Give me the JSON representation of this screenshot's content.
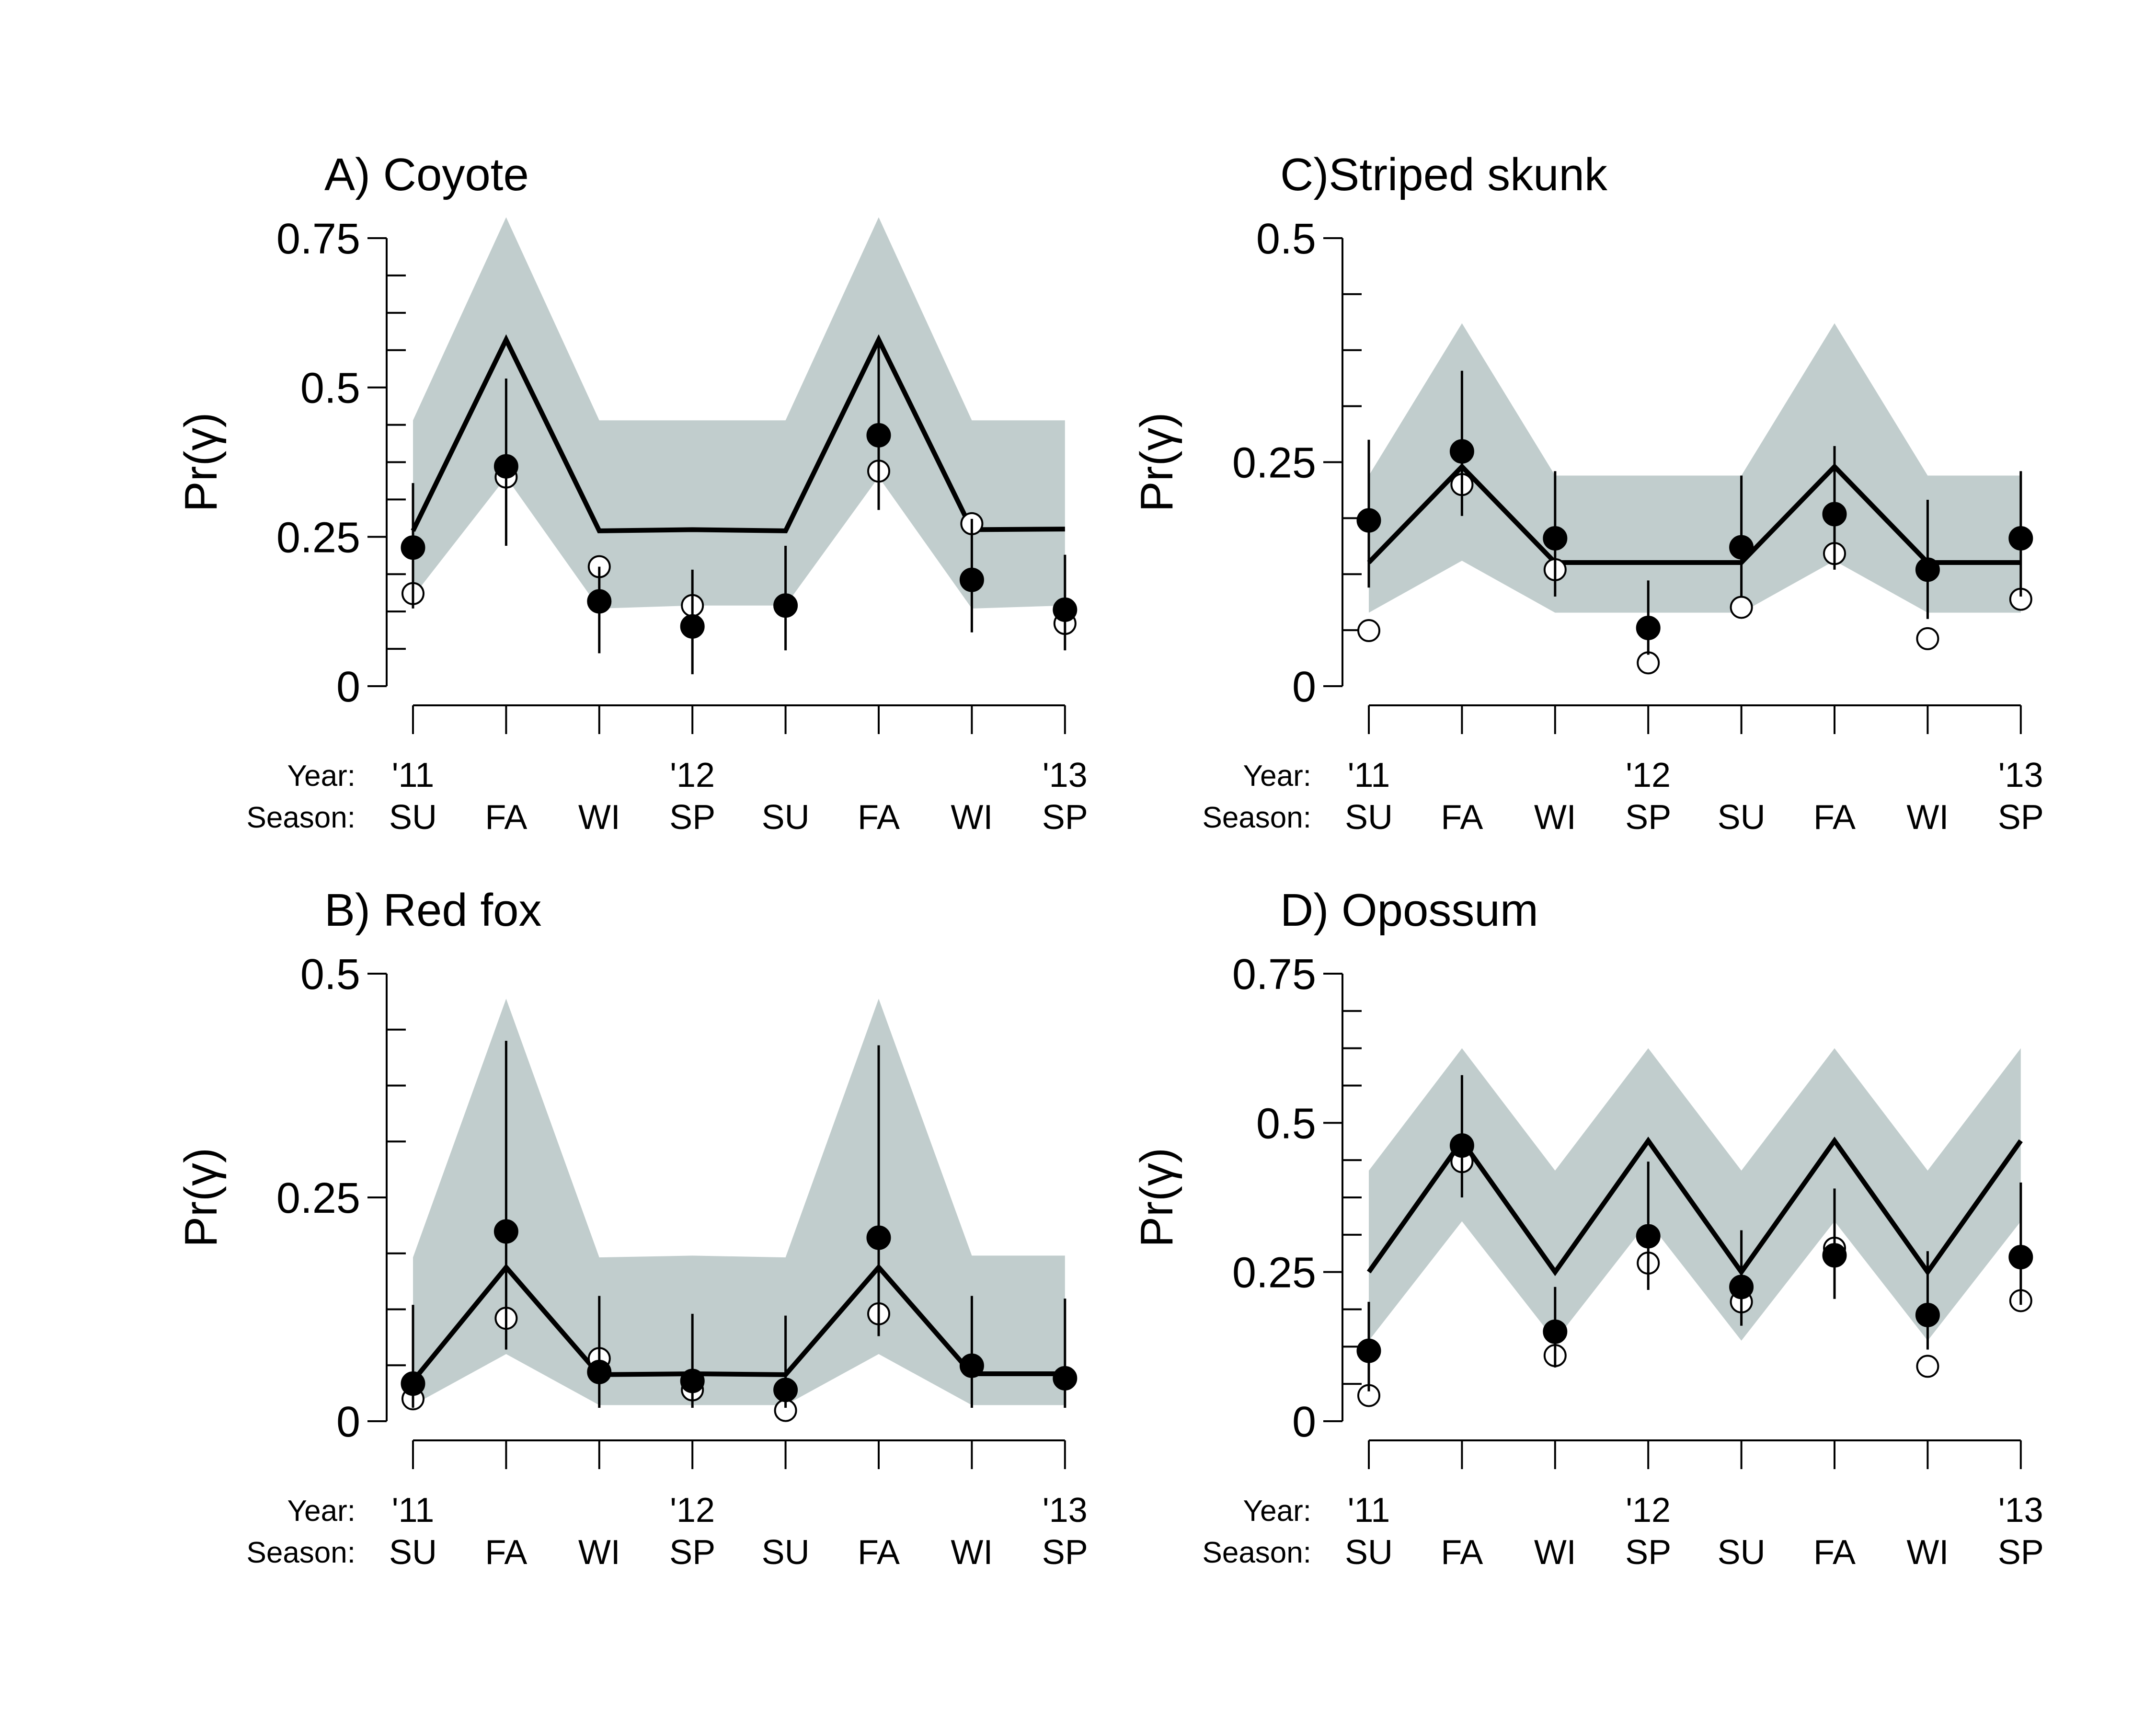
{
  "chart_data": [
    {
      "type": "line",
      "panel": "A",
      "title": "A) Coyote",
      "ylabel": "Pr(γ)",
      "ylim": [
        0,
        0.75
      ],
      "yticks": [
        0,
        0.25,
        0.5,
        0.75
      ],
      "ytick_labels": [
        "0",
        "0.25",
        "0.5",
        "0.75"
      ],
      "year_label": "Year:",
      "season_label": "Season:",
      "years": [
        "'11",
        "",
        "",
        "'12",
        "",
        "",
        "",
        "'13"
      ],
      "categories": [
        "SU",
        "FA",
        "WI",
        "SP",
        "SU",
        "FA",
        "WI",
        "SP"
      ],
      "series": [
        {
          "kind": "band",
          "lower": [
            0.15,
            0.35,
            0.13,
            0.135,
            0.135,
            0.35,
            0.13,
            0.135
          ],
          "upper": [
            0.445,
            0.785,
            0.445,
            0.445,
            0.445,
            0.785,
            0.445,
            0.445
          ]
        },
        {
          "kind": "line",
          "values": [
            0.26,
            0.58,
            0.26,
            0.262,
            0.26,
            0.58,
            0.262,
            0.263
          ]
        },
        {
          "kind": "open_points",
          "values": [
            0.155,
            0.35,
            0.2,
            0.135,
            null,
            0.36,
            0.272,
            0.105
          ]
        },
        {
          "kind": "filled_points",
          "values": [
            0.232,
            0.368,
            0.142,
            0.1,
            0.135,
            0.42,
            0.178,
            0.128
          ],
          "ci_low": [
            0.13,
            0.235,
            0.055,
            0.02,
            0.06,
            0.295,
            0.09,
            0.06
          ],
          "ci_high": [
            0.34,
            0.515,
            0.2,
            0.195,
            0.235,
            0.585,
            0.28,
            0.22
          ]
        }
      ]
    },
    {
      "type": "line",
      "panel": "B",
      "title": "B) Red fox",
      "ylabel": "Pr(γ)",
      "ylim": [
        0,
        0.5
      ],
      "yticks": [
        0,
        0.25,
        0.5
      ],
      "ytick_labels": [
        "0",
        "0.25",
        "0.5"
      ],
      "year_label": "Year:",
      "season_label": "Season:",
      "years": [
        "'11",
        "",
        "",
        "'12",
        "",
        "",
        "",
        "'13"
      ],
      "categories": [
        "SU",
        "FA",
        "WI",
        "SP",
        "SU",
        "FA",
        "WI",
        "SP"
      ],
      "series": [
        {
          "kind": "band",
          "lower": [
            0.018,
            0.075,
            0.018,
            0.018,
            0.018,
            0.075,
            0.018,
            0.018
          ],
          "upper": [
            0.183,
            0.472,
            0.183,
            0.185,
            0.183,
            0.472,
            0.185,
            0.185
          ]
        },
        {
          "kind": "line",
          "values": [
            0.045,
            0.172,
            0.052,
            0.053,
            0.052,
            0.172,
            0.053,
            0.053
          ]
        },
        {
          "kind": "open_points",
          "values": [
            0.025,
            0.115,
            0.07,
            0.035,
            0.012,
            0.12,
            null,
            null
          ]
        },
        {
          "kind": "filled_points",
          "values": [
            0.042,
            0.212,
            0.055,
            0.045,
            0.035,
            0.205,
            0.062,
            0.048
          ],
          "ci_low": [
            0.015,
            0.08,
            0.015,
            0.015,
            0.015,
            0.095,
            0.015,
            0.015
          ],
          "ci_high": [
            0.13,
            0.425,
            0.14,
            0.12,
            0.118,
            0.42,
            0.14,
            0.137
          ]
        }
      ]
    },
    {
      "type": "line",
      "panel": "C",
      "title": "C)Striped skunk",
      "ylabel": "Pr(γ)",
      "ylim": [
        0,
        0.5
      ],
      "yticks": [
        0,
        0.25,
        0.5
      ],
      "ytick_labels": [
        "0",
        "0.25",
        "0.5"
      ],
      "year_label": "Year:",
      "season_label": "Season:",
      "years": [
        "'11",
        "",
        "",
        "'12",
        "",
        "",
        "",
        "'13"
      ],
      "categories": [
        "SU",
        "FA",
        "WI",
        "SP",
        "SU",
        "FA",
        "WI",
        "SP"
      ],
      "series": [
        {
          "kind": "band",
          "lower": [
            0.082,
            0.14,
            0.082,
            0.082,
            0.082,
            0.14,
            0.082,
            0.082
          ],
          "upper": [
            0.235,
            0.405,
            0.235,
            0.235,
            0.235,
            0.405,
            0.235,
            0.235
          ]
        },
        {
          "kind": "line",
          "values": [
            0.138,
            0.245,
            0.138,
            0.138,
            0.138,
            0.245,
            0.138,
            0.138
          ]
        },
        {
          "kind": "open_points",
          "values": [
            0.062,
            0.225,
            0.13,
            0.026,
            0.088,
            0.148,
            0.053,
            0.097
          ]
        },
        {
          "kind": "filled_points",
          "values": [
            0.185,
            0.262,
            0.165,
            0.065,
            0.155,
            0.192,
            0.13,
            0.165
          ],
          "ci_low": [
            0.11,
            0.19,
            0.1,
            0.035,
            0.1,
            0.13,
            0.075,
            0.1
          ],
          "ci_high": [
            0.275,
            0.352,
            0.24,
            0.118,
            0.235,
            0.268,
            0.208,
            0.24
          ]
        }
      ]
    },
    {
      "type": "line",
      "panel": "D",
      "title": "D) Opossum",
      "ylabel": "Pr(γ)",
      "ylim": [
        0,
        0.75
      ],
      "yticks": [
        0,
        0.25,
        0.5,
        0.75
      ],
      "ytick_labels": [
        "0",
        "0.25",
        "0.5",
        "0.75"
      ],
      "year_label": "Year:",
      "season_label": "Season:",
      "years": [
        "'11",
        "",
        "",
        "'12",
        "",
        "",
        "",
        "'13"
      ],
      "categories": [
        "SU",
        "FA",
        "WI",
        "SP",
        "SU",
        "FA",
        "WI",
        "SP"
      ],
      "series": [
        {
          "kind": "band",
          "lower": [
            0.135,
            0.335,
            0.135,
            0.335,
            0.135,
            0.335,
            0.135,
            0.335
          ],
          "upper": [
            0.42,
            0.625,
            0.42,
            0.625,
            0.42,
            0.625,
            0.42,
            0.625
          ]
        },
        {
          "kind": "line",
          "values": [
            0.25,
            0.47,
            0.25,
            0.47,
            0.25,
            0.47,
            0.25,
            0.47
          ]
        },
        {
          "kind": "open_points",
          "values": [
            0.043,
            0.435,
            0.11,
            0.265,
            0.2,
            0.29,
            0.092,
            0.202
          ]
        },
        {
          "kind": "filled_points",
          "values": [
            0.118,
            0.462,
            0.15,
            0.31,
            0.225,
            0.278,
            0.178,
            0.275
          ],
          "ci_low": [
            0.05,
            0.375,
            0.09,
            0.22,
            0.16,
            0.205,
            0.12,
            0.195
          ],
          "ci_high": [
            0.2,
            0.58,
            0.225,
            0.435,
            0.32,
            0.39,
            0.285,
            0.4
          ]
        }
      ]
    }
  ]
}
